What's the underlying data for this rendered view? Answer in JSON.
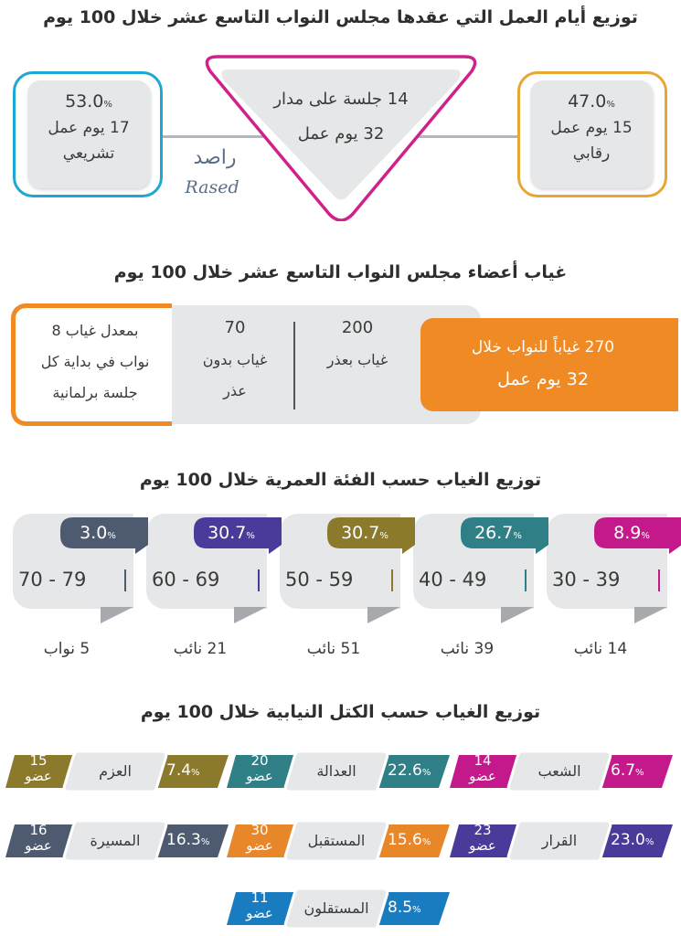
{
  "section1": {
    "title": "توزيع أيام العمل التي عقدها مجلس النواب التاسع عشر خلال 100 يوم",
    "center": {
      "line1": "14 جلسة على مدار",
      "line2": "32 يوم عمل"
    },
    "left": {
      "percent": "53.0",
      "days": "17 يوم عمل",
      "type": "تشريعي"
    },
    "right": {
      "percent": "47.0",
      "days": "15 يوم عمل",
      "type": "رقابي"
    },
    "logo": {
      "arabic": "راصد",
      "latin": "Rased"
    }
  },
  "section2": {
    "title": "غياب أعضاء مجلس النواب التاسع عشر خلال 100 يوم",
    "total": {
      "line1": "270 غياباً للنواب خلال",
      "line2": "32 يوم عمل"
    },
    "excused": {
      "number": "200",
      "label": "غياب بعذر"
    },
    "unexcused": {
      "number": "70",
      "label_line1": "غياب بدون",
      "label_line2": "عذر"
    },
    "average": {
      "line1": "بمعدل غياب 8",
      "line2": "نواب في بداية كل",
      "line3": "جلسة برلمانية"
    }
  },
  "section3": {
    "title": "توزيع الغياب حسب الفئة العمرية خلال 100 يوم",
    "groups": [
      {
        "percent": "8.9",
        "range": "30 - 39",
        "count": "14 نائب",
        "color": "#c4198b"
      },
      {
        "percent": "26.7",
        "range": "40 - 49",
        "count": "39 نائب",
        "color": "#2e7f86"
      },
      {
        "percent": "30.7",
        "range": "50 - 59",
        "count": "51 نائب",
        "color": "#8b7a2c"
      },
      {
        "percent": "30.7",
        "range": "60 - 69",
        "count": "21 نائب",
        "color": "#4a3a9a"
      },
      {
        "percent": "3.0",
        "range": "70 - 79",
        "count": "5 نواب",
        "color": "#4e5a70"
      }
    ]
  },
  "section4": {
    "title": "توزيع الغياب حسب الكتل النيابية خلال 100 يوم",
    "member_word": "عضو",
    "blocs": [
      {
        "name": "الشعب",
        "percent": "6.7",
        "members": "14",
        "color": "#c4198b"
      },
      {
        "name": "العدالة",
        "percent": "22.6",
        "members": "20",
        "color": "#2e7f86"
      },
      {
        "name": "العزم",
        "percent": "7.4",
        "members": "15",
        "color": "#8b7a2c"
      },
      {
        "name": "القرار",
        "percent": "23.0",
        "members": "23",
        "color": "#4a3a9a"
      },
      {
        "name": "المستقبل",
        "percent": "15.6",
        "members": "30",
        "color": "#e8862a"
      },
      {
        "name": "المسيرة",
        "percent": "16.3",
        "members": "16",
        "color": "#4e5a70"
      },
      {
        "name": "المستقلون",
        "percent": "8.5",
        "members": "11",
        "color": "#1a7cc0"
      }
    ]
  },
  "colors": {
    "blue": "#1fa7d4",
    "magenta": "#d0218b",
    "gold": "#e6a832",
    "orange": "#f08a24"
  }
}
